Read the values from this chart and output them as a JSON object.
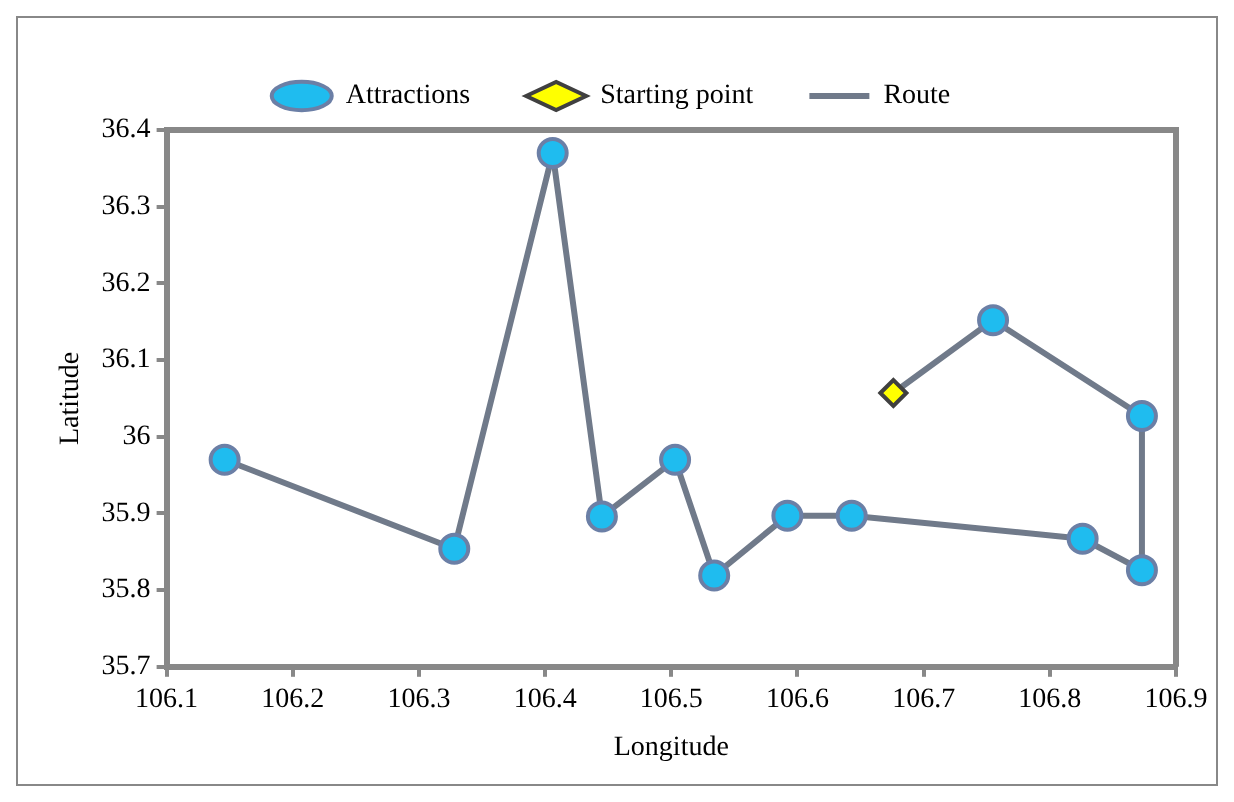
{
  "chart_data": {
    "type": "scatter",
    "xlabel": "Longitude",
    "ylabel": "Latitude",
    "xlim": [
      106.1,
      106.9
    ],
    "xticks": [
      106.1,
      106.2,
      106.3,
      106.4,
      106.5,
      106.6,
      106.7,
      106.8,
      106.9
    ],
    "ylim": [
      35.7,
      36.4
    ],
    "yticks": [
      35.7,
      35.8,
      35.9,
      36,
      36.1,
      36.2,
      36.3,
      36.4
    ],
    "grid": false,
    "legend": "top",
    "series": [
      {
        "name": "Attractions",
        "type": "scatter",
        "marker": "circle",
        "color": "#1fbcef",
        "x": [
          106.146,
          106.328,
          106.406,
          106.445,
          106.503,
          106.534,
          106.592,
          106.643,
          106.755,
          106.873,
          106.873,
          106.826
        ],
        "values": [
          35.97,
          35.854,
          36.37,
          35.896,
          35.97,
          35.819,
          35.897,
          35.897,
          36.152,
          36.027,
          35.826,
          35.867
        ]
      },
      {
        "name": "Starting point",
        "type": "scatter",
        "marker": "diamond",
        "color": "#ffff00",
        "x": [
          106.676
        ],
        "values": [
          36.057
        ]
      },
      {
        "name": "Route",
        "type": "line",
        "marker": "none",
        "color": "#707a8a",
        "x": [
          106.676,
          106.755,
          106.873,
          106.873,
          106.826,
          106.643,
          106.592,
          106.534,
          106.503,
          106.445,
          106.406,
          106.328,
          106.146
        ],
        "values": [
          36.057,
          36.152,
          36.027,
          35.826,
          35.867,
          35.897,
          35.897,
          35.819,
          35.97,
          35.896,
          36.37,
          35.854,
          35.97
        ]
      }
    ]
  }
}
